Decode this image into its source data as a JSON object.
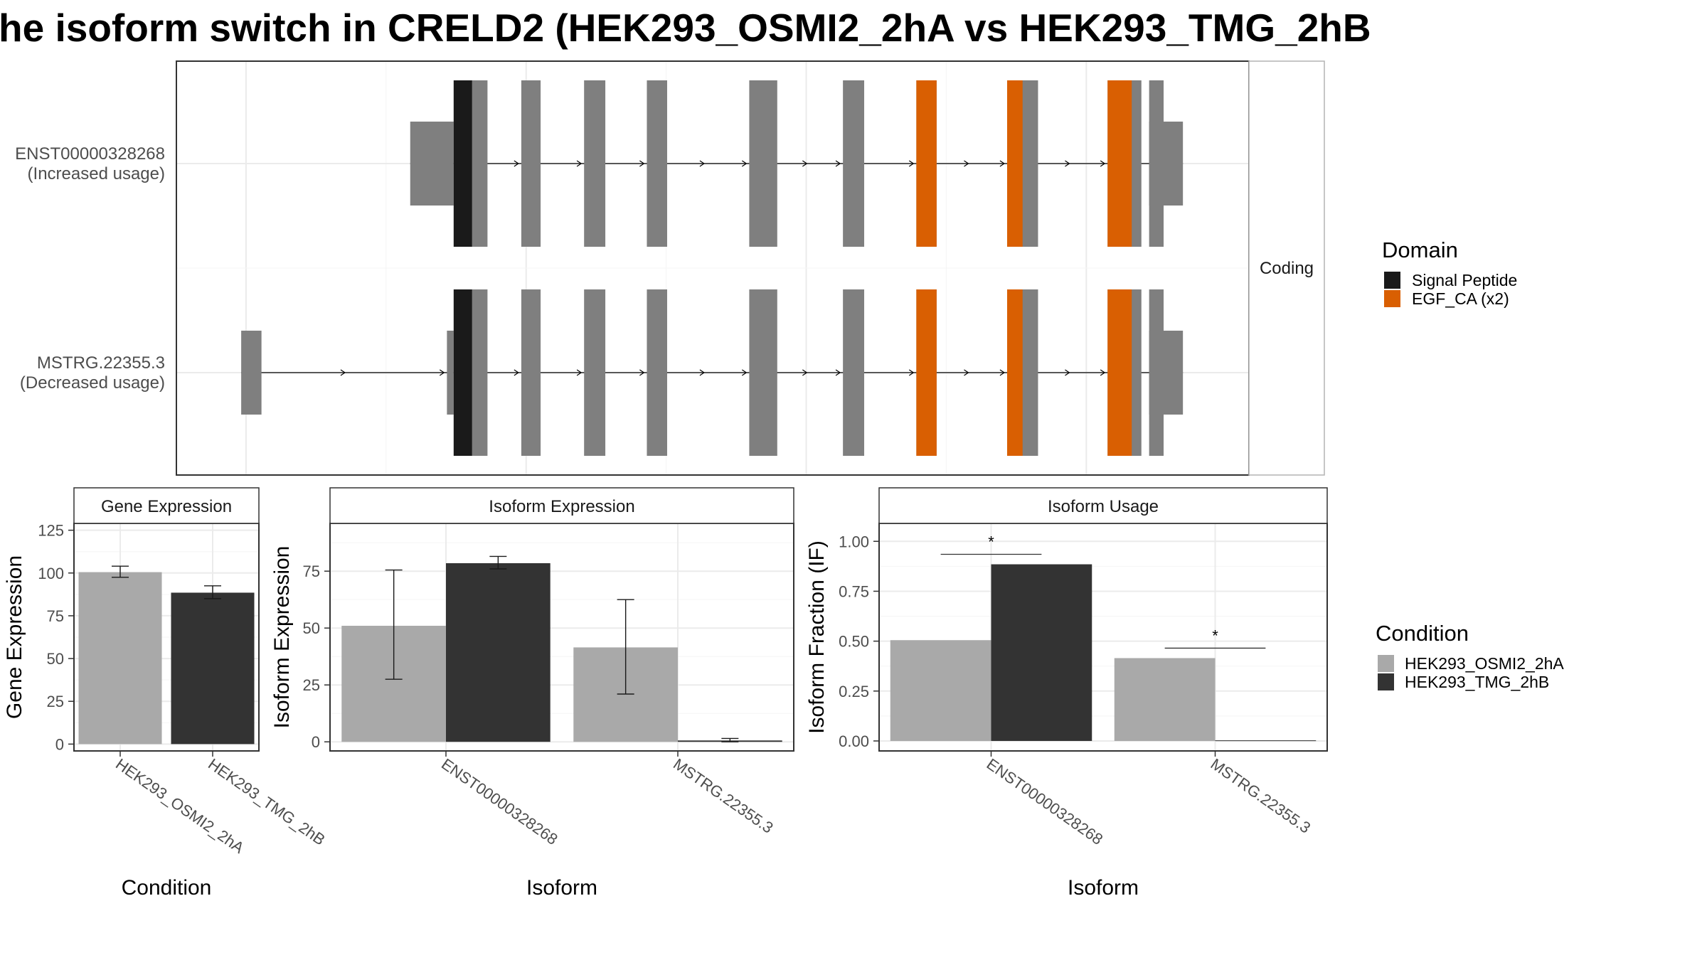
{
  "title": "he isoform switch in CRELD2 (HEK293_OSMI2_2hA vs HEK293_TMG_2hB",
  "colors": {
    "exon": "#7f7f7f",
    "signal_peptide": "#1a1a1a",
    "egf_ca": "#d95f02",
    "cond_a": "#a9a9a9",
    "cond_b": "#333333"
  },
  "chart_data": [
    {
      "type": "gene-structure",
      "facet_label": "Coding",
      "transcripts": [
        {
          "id": "ENST00000328268",
          "note": "(Increased usage)",
          "utr": [
            [
              0.22,
              0.265
            ],
            [
              0.985,
              1.02
            ]
          ],
          "exons": [
            [
              0.265,
              0.3
            ],
            [
              0.335,
              0.355
            ],
            [
              0.4,
              0.422
            ],
            [
              0.465,
              0.486
            ],
            [
              0.571,
              0.6
            ],
            [
              0.668,
              0.69
            ],
            [
              0.744,
              0.765
            ],
            [
              0.838,
              0.87
            ],
            [
              0.942,
              0.977
            ],
            [
              0.985,
              1.0
            ]
          ],
          "domains": [
            {
              "domain": "Signal Peptide",
              "start": 0.265,
              "end": 0.284
            },
            {
              "domain": "EGF_CA (x2)",
              "start": 0.744,
              "end": 0.765
            },
            {
              "domain": "EGF_CA (x2)",
              "start": 0.838,
              "end": 0.854
            },
            {
              "domain": "EGF_CA (x2)",
              "start": 0.942,
              "end": 0.967
            }
          ]
        },
        {
          "id": "MSTRG.22355.3",
          "note": "(Decreased usage)",
          "utr": [
            [
              0.045,
              0.066
            ],
            [
              0.258,
              0.265
            ],
            [
              0.985,
              1.02
            ]
          ],
          "exons": [
            [
              0.265,
              0.3
            ],
            [
              0.335,
              0.355
            ],
            [
              0.4,
              0.422
            ],
            [
              0.465,
              0.486
            ],
            [
              0.571,
              0.6
            ],
            [
              0.668,
              0.69
            ],
            [
              0.744,
              0.765
            ],
            [
              0.838,
              0.87
            ],
            [
              0.942,
              0.977
            ],
            [
              0.985,
              1.0
            ]
          ],
          "domains": [
            {
              "domain": "Signal Peptide",
              "start": 0.265,
              "end": 0.284
            },
            {
              "domain": "EGF_CA (x2)",
              "start": 0.744,
              "end": 0.765
            },
            {
              "domain": "EGF_CA (x2)",
              "start": 0.838,
              "end": 0.854
            },
            {
              "domain": "EGF_CA (x2)",
              "start": 0.942,
              "end": 0.967
            }
          ]
        }
      ],
      "legend": {
        "title": "Domain",
        "entries": [
          "Signal Peptide",
          "EGF_CA (x2)"
        ],
        "placement": "right"
      }
    },
    {
      "type": "bar",
      "panel_title": "Gene Expression",
      "categories": [
        "HEK293_OSMI2_2hA",
        "HEK293_TMG_2hB"
      ],
      "values": [
        100.5,
        88.5
      ],
      "error": [
        [
          97.5,
          104.0
        ],
        [
          85.0,
          92.5
        ]
      ],
      "xlabel": "Condition",
      "ylabel": "Gene Expression",
      "ylim": [
        -4,
        129
      ],
      "yticks": [
        0,
        25,
        50,
        75,
        100,
        125
      ]
    },
    {
      "type": "bar",
      "panel_title": "Isoform Expression",
      "categories": [
        "ENST00000328268",
        "MSTRG.22355.3"
      ],
      "series": [
        {
          "name": "HEK293_OSMI2_2hA",
          "values": [
            51,
            41.5
          ],
          "error": [
            [
              27.5,
              75.5
            ],
            [
              21.0,
              62.5
            ]
          ]
        },
        {
          "name": "HEK293_TMG_2hB",
          "values": [
            78.5,
            0.6
          ],
          "error": [
            [
              76.0,
              81.5
            ],
            [
              0.0,
              1.5
            ]
          ]
        }
      ],
      "xlabel": "Isoform",
      "ylabel": "Isoform Expression",
      "ylim": [
        -4,
        96
      ],
      "yticks": [
        0,
        25,
        50,
        75
      ]
    },
    {
      "type": "bar",
      "panel_title": "Isoform Usage",
      "categories": [
        "ENST00000328268",
        "MSTRG.22355.3"
      ],
      "series": [
        {
          "name": "HEK293_OSMI2_2hA",
          "values": [
            0.505,
            0.415
          ]
        },
        {
          "name": "HEK293_TMG_2hB",
          "values": [
            0.885,
            0.003
          ]
        }
      ],
      "significance": [
        {
          "category": "ENST00000328268",
          "y": 0.935,
          "label": "*"
        },
        {
          "category": "MSTRG.22355.3",
          "y": 0.465,
          "label": "*"
        }
      ],
      "xlabel": "Isoform",
      "ylabel": "Isoform Fraction (IF)",
      "ylim": [
        -0.05,
        1.09
      ],
      "yticks": [
        0.0,
        0.25,
        0.5,
        0.75,
        1.0
      ],
      "ytick_labels": [
        "0.00",
        "0.25",
        "0.50",
        "0.75",
        "1.00"
      ],
      "legend": {
        "title": "Condition",
        "entries": [
          "HEK293_OSMI2_2hA",
          "HEK293_TMG_2hB"
        ],
        "placement": "right"
      }
    }
  ]
}
